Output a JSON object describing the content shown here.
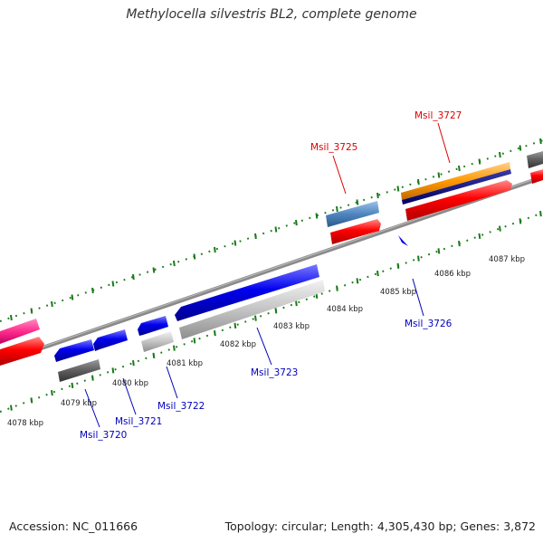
{
  "title": "Methylocella silvestris BL2, complete genome",
  "accession": "Accession: NC_011666",
  "summary": "Topology: circular; Length: 4,305,430 bp; Genes: 3,872",
  "kbp_ticks": [
    "4078 kbp",
    "4079 kbp",
    "4080 kbp",
    "4081 kbp",
    "4082 kbp",
    "4083 kbp",
    "4084 kbp",
    "4085 kbp",
    "4086 kbp",
    "4087 kbp"
  ],
  "gene_labels": [
    {
      "id": "Msil_3720",
      "text": "Msil_3720",
      "strand": "reverse"
    },
    {
      "id": "Msil_3721",
      "text": "Msil_3721",
      "strand": "reverse"
    },
    {
      "id": "Msil_3722",
      "text": "Msil_3722",
      "strand": "reverse"
    },
    {
      "id": "Msil_3723",
      "text": "Msil_3723",
      "strand": "reverse"
    },
    {
      "id": "Msil_3725",
      "text": "Msil_3725",
      "strand": "forward"
    },
    {
      "id": "Msil_3726",
      "text": "Msil_3726",
      "strand": "reverse"
    },
    {
      "id": "Msil_3727",
      "text": "Msil_3727",
      "strand": "forward"
    }
  ],
  "colors": {
    "backbone": "#8a8a8a",
    "forward_cds": "#ff0000",
    "reverse_cds": "#0000ee",
    "forward_label": "#dd0000",
    "reverse_label": "#0000bb",
    "gc_dots": "#1a7a1a",
    "magenta": "#ff2d8e",
    "steelblue": "#4f86c0",
    "orange": "#ff9900",
    "navy": "#000080",
    "light_gray": "#c4c4c4",
    "dark_gray": "#666666"
  }
}
